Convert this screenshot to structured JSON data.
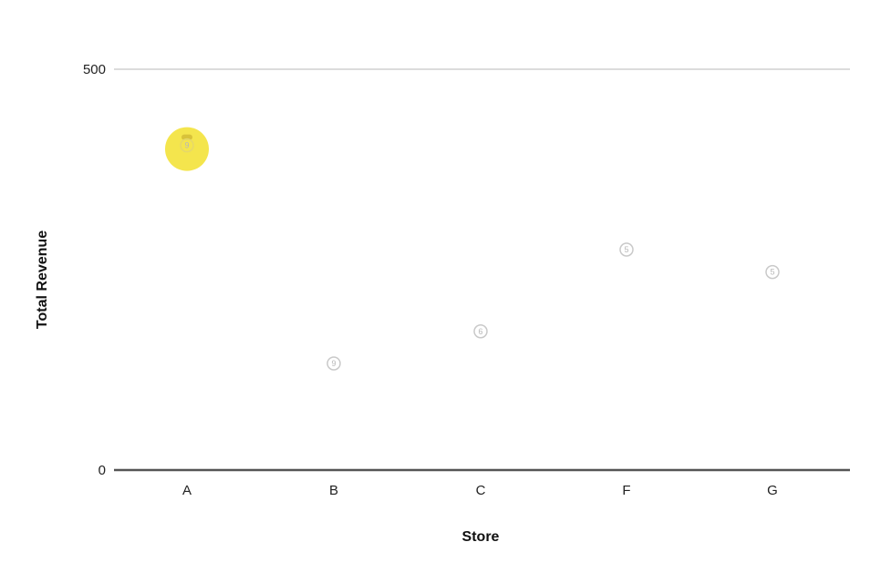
{
  "chart_data": {
    "type": "scatter",
    "title": "",
    "xlabel": "Store",
    "ylabel": "Total Revenue",
    "categories": [
      "A",
      "B",
      "C",
      "F",
      "G"
    ],
    "values": [
      405,
      133,
      173,
      275,
      247
    ],
    "point_labels": [
      "9",
      "9",
      "6",
      "5",
      "5"
    ],
    "highlighted_category": "A",
    "ylim": [
      0,
      500
    ],
    "yticks": [
      0,
      500
    ],
    "grid": false,
    "legend": "none",
    "colors": {
      "point": "#c9c9c9",
      "highlight": "#f3e23a",
      "highlight_marker": "#d8c23a",
      "axis": "#555555",
      "top_line": "#d0d0d0"
    }
  }
}
